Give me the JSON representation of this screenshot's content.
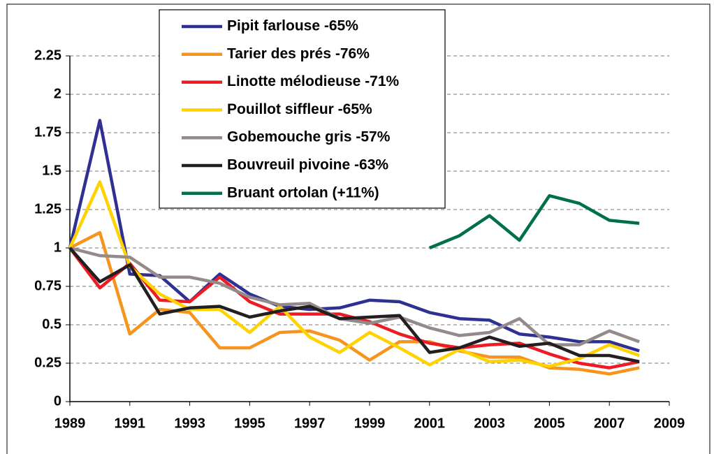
{
  "chart_data": {
    "type": "line",
    "x": [
      1989,
      1990,
      1991,
      1992,
      1993,
      1994,
      1995,
      1996,
      1997,
      1998,
      1999,
      2000,
      2001,
      2002,
      2003,
      2004,
      2005,
      2006,
      2007,
      2008
    ],
    "series": [
      {
        "name": "Pipit farlouse -65%",
        "color": "#2e3192",
        "values": [
          1,
          1.83,
          0.83,
          0.82,
          0.65,
          0.83,
          0.7,
          0.62,
          0.6,
          0.61,
          0.66,
          0.65,
          0.58,
          0.54,
          0.53,
          0.44,
          0.42,
          0.39,
          0.39,
          0.33
        ]
      },
      {
        "name": "Tarier des prés -76%",
        "color": "#f7941d",
        "values": [
          1,
          1.1,
          0.44,
          0.6,
          0.58,
          0.35,
          0.35,
          0.45,
          0.46,
          0.4,
          0.27,
          0.39,
          0.39,
          0.33,
          0.29,
          0.29,
          0.22,
          0.21,
          0.18,
          0.22
        ]
      },
      {
        "name": "Linotte mélodieuse -71%",
        "color": "#ed1c24",
        "values": [
          1,
          0.74,
          0.9,
          0.66,
          0.65,
          0.81,
          0.65,
          0.57,
          0.57,
          0.57,
          0.52,
          0.44,
          0.38,
          0.35,
          0.37,
          0.38,
          0.31,
          0.25,
          0.22,
          0.26
        ]
      },
      {
        "name": "Pouillot siffleur -65%",
        "color": "#ffd200",
        "values": [
          1,
          1.43,
          0.88,
          0.7,
          0.6,
          0.6,
          0.45,
          0.62,
          0.42,
          0.32,
          0.45,
          0.35,
          0.24,
          0.34,
          0.26,
          0.27,
          0.23,
          0.28,
          0.37,
          0.3
        ]
      },
      {
        "name": "Gobemouche gris -57%",
        "color": "#948a8a",
        "values": [
          1,
          0.95,
          0.94,
          0.81,
          0.81,
          0.77,
          0.68,
          0.63,
          0.64,
          0.54,
          0.51,
          0.55,
          0.48,
          0.43,
          0.45,
          0.54,
          0.37,
          0.37,
          0.46,
          0.39
        ]
      },
      {
        "name": "Bouvreuil pivoine -63%",
        "color": "#231f20",
        "values": [
          1,
          0.78,
          0.89,
          0.57,
          0.61,
          0.62,
          0.55,
          0.59,
          0.62,
          0.54,
          0.55,
          0.56,
          0.32,
          0.35,
          0.42,
          0.36,
          0.38,
          0.3,
          0.3,
          0.26
        ]
      },
      {
        "name": "Bruant ortolan (+11%)",
        "color": "#00704a",
        "values": [
          null,
          null,
          null,
          null,
          null,
          null,
          null,
          null,
          null,
          null,
          null,
          null,
          1.0,
          1.08,
          1.21,
          1.05,
          1.34,
          1.29,
          1.18,
          1.16
        ]
      }
    ],
    "xlim": [
      1989,
      2009
    ],
    "xticks": [
      1989,
      1991,
      1993,
      1995,
      1997,
      1999,
      2001,
      2003,
      2005,
      2007,
      2009
    ],
    "ylim": [
      0,
      2.25
    ],
    "yticks": [
      0,
      0.25,
      0.5,
      0.75,
      1,
      1.25,
      1.5,
      1.75,
      2,
      2.25
    ],
    "grid": true,
    "legend": "top"
  }
}
